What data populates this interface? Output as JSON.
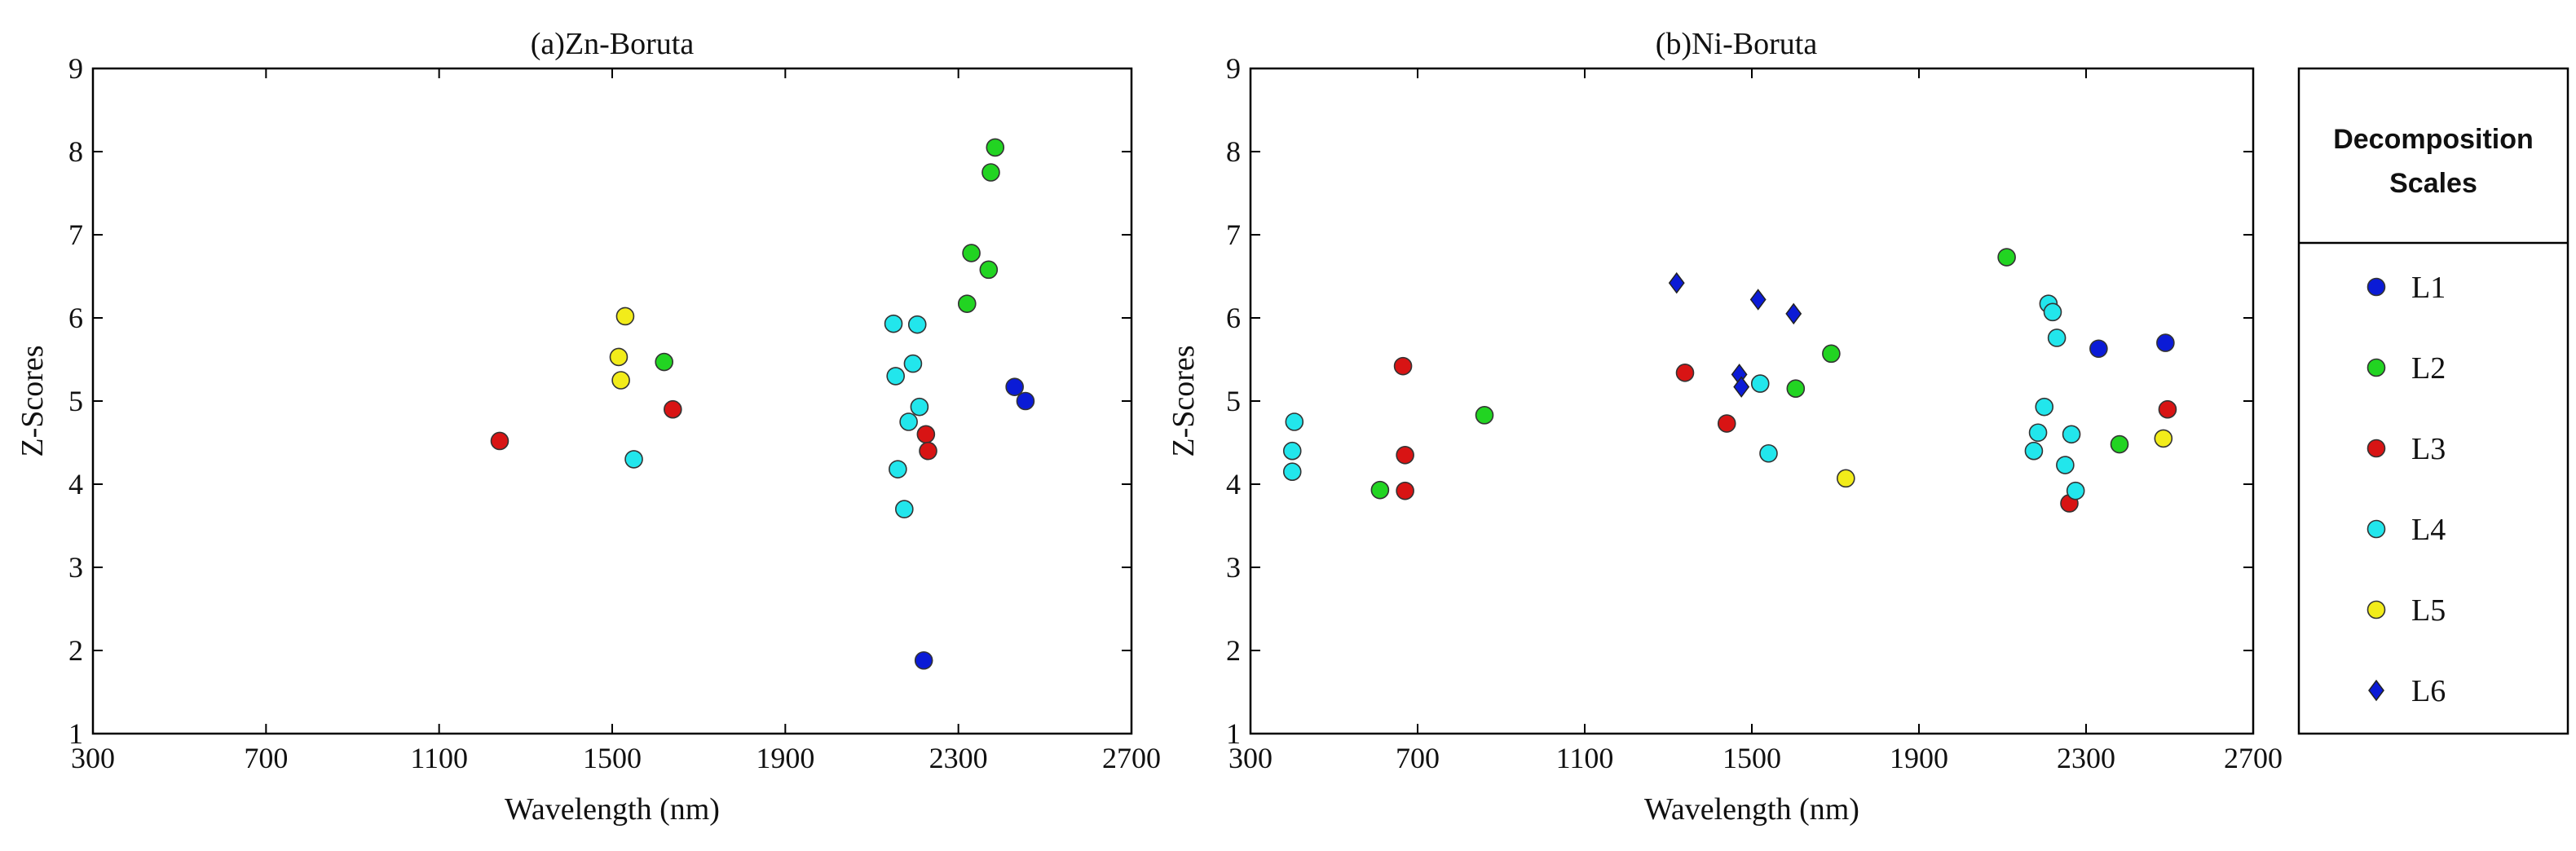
{
  "chart_data": [
    {
      "type": "scatter",
      "title": "(a)Zn-Boruta",
      "xlabel": "Wavelength (nm)",
      "ylabel": "Z-Scores",
      "xlim": [
        300,
        2700
      ],
      "ylim": [
        1,
        9
      ],
      "xticks": [
        "300",
        "700",
        "1100",
        "1500",
        "1900",
        "2300",
        "2700"
      ],
      "yticks": [
        "1",
        "2",
        "3",
        "4",
        "5",
        "6",
        "7",
        "8",
        "9"
      ],
      "grid": false,
      "series": [
        {
          "name": "L1",
          "points": [
            [
              2220,
              1.88
            ],
            [
              2430,
              5.17
            ],
            [
              2455,
              5.0
            ]
          ]
        },
        {
          "name": "L2",
          "points": [
            [
              1620,
              5.47
            ],
            [
              2320,
              6.17
            ],
            [
              2330,
              6.78
            ],
            [
              2370,
              6.58
            ],
            [
              2375,
              7.75
            ],
            [
              2385,
              8.05
            ]
          ]
        },
        {
          "name": "L3",
          "points": [
            [
              1240,
              4.52
            ],
            [
              1640,
              4.9
            ],
            [
              2225,
              4.6
            ],
            [
              2230,
              4.4
            ]
          ]
        },
        {
          "name": "L4",
          "points": [
            [
              1550,
              4.3
            ],
            [
              2150,
              5.93
            ],
            [
              2155,
              5.3
            ],
            [
              2160,
              4.18
            ],
            [
              2175,
              3.7
            ],
            [
              2185,
              4.75
            ],
            [
              2195,
              5.45
            ],
            [
              2205,
              5.92
            ],
            [
              2210,
              4.93
            ]
          ]
        },
        {
          "name": "L5",
          "points": [
            [
              1515,
              5.53
            ],
            [
              1520,
              5.25
            ],
            [
              1530,
              6.02
            ]
          ]
        },
        {
          "name": "L6",
          "points": []
        }
      ]
    },
    {
      "type": "scatter",
      "title": "(b)Ni-Boruta",
      "xlabel": "Wavelength (nm)",
      "ylabel": "Z-Scores",
      "xlim": [
        300,
        2700
      ],
      "ylim": [
        1,
        9
      ],
      "xticks": [
        "300",
        "700",
        "1100",
        "1500",
        "1900",
        "2300",
        "2700"
      ],
      "yticks": [
        "1",
        "2",
        "3",
        "4",
        "5",
        "6",
        "7",
        "8",
        "9"
      ],
      "grid": false,
      "series": [
        {
          "name": "L1",
          "points": [
            [
              2330,
              5.63
            ],
            [
              2490,
              5.7
            ]
          ]
        },
        {
          "name": "L2",
          "points": [
            [
              610,
              3.93
            ],
            [
              860,
              4.83
            ],
            [
              1605,
              5.15
            ],
            [
              1690,
              5.57
            ],
            [
              2110,
              6.73
            ],
            [
              2380,
              4.48
            ]
          ]
        },
        {
          "name": "L3",
          "points": [
            [
              665,
              5.42
            ],
            [
              670,
              4.35
            ],
            [
              670,
              3.92
            ],
            [
              1340,
              5.34
            ],
            [
              1440,
              4.73
            ],
            [
              2260,
              3.77
            ],
            [
              2495,
              4.9
            ]
          ]
        },
        {
          "name": "L4",
          "points": [
            [
              400,
              4.15
            ],
            [
              400,
              4.4
            ],
            [
              405,
              4.75
            ],
            [
              1520,
              5.21
            ],
            [
              1540,
              4.37
            ],
            [
              2175,
              4.4
            ],
            [
              2185,
              4.62
            ],
            [
              2200,
              4.93
            ],
            [
              2210,
              6.17
            ],
            [
              2220,
              6.07
            ],
            [
              2230,
              5.76
            ],
            [
              2250,
              4.23
            ],
            [
              2265,
              4.6
            ],
            [
              2275,
              3.92
            ]
          ]
        },
        {
          "name": "L5",
          "points": [
            [
              1725,
              4.07
            ],
            [
              2485,
              4.55
            ]
          ]
        },
        {
          "name": "L6",
          "points": [
            [
              1320,
              6.42
            ],
            [
              1470,
              5.32
            ],
            [
              1475,
              5.17
            ],
            [
              1515,
              6.22
            ],
            [
              1600,
              6.05
            ]
          ]
        }
      ]
    }
  ],
  "legend": {
    "title_line1": "Decomposition",
    "title_line2": "Scales",
    "entries": [
      {
        "label": "L1",
        "color": "#0b1bd6",
        "marker": "circle"
      },
      {
        "label": "L2",
        "color": "#22d422",
        "marker": "circle"
      },
      {
        "label": "L3",
        "color": "#d81414",
        "marker": "circle"
      },
      {
        "label": "L4",
        "color": "#22e6ec",
        "marker": "circle"
      },
      {
        "label": "L5",
        "color": "#f2ec1a",
        "marker": "circle"
      },
      {
        "label": "L6",
        "color": "#0b1bd6",
        "marker": "diamond"
      }
    ]
  }
}
